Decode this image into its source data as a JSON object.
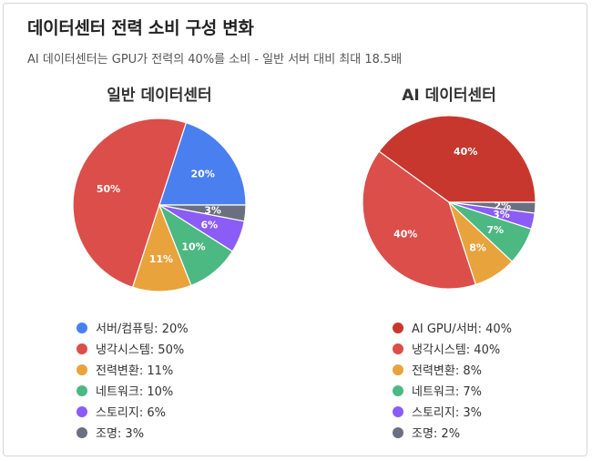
{
  "title": "데이터센터 전력 소비 구성 변화",
  "subtitle": "AI 데이터센터는 GPU가 전력의 40%를 소비 - 일반 서버 대비 최대 18.5배",
  "chart_data": [
    {
      "type": "pie",
      "title": "일반 데이터센터",
      "categories": [
        "서버/컴퓨팅",
        "냉각시스템",
        "전력변환",
        "네트워크",
        "스토리지",
        "조명"
      ],
      "values": [
        20,
        50,
        11,
        10,
        6,
        3
      ],
      "colors": [
        "#4a7ff0",
        "#dc4e4a",
        "#e8a33c",
        "#4cb882",
        "#8b5cf6",
        "#6b7080"
      ],
      "legend": [
        "서버/컴퓨팅: 20%",
        "냉각시스템: 50%",
        "전력변환: 11%",
        "네트워크: 10%",
        "스토리지: 6%",
        "조명: 3%"
      ]
    },
    {
      "type": "pie",
      "title": "AI 데이터센터",
      "categories": [
        "AI GPU/서버",
        "냉각시스템",
        "전력변환",
        "네트워크",
        "스토리지",
        "조명"
      ],
      "values": [
        40,
        40,
        8,
        7,
        3,
        2
      ],
      "colors": [
        "#c8372d",
        "#dc4e4a",
        "#e8a33c",
        "#4cb882",
        "#8b5cf6",
        "#6b7080"
      ],
      "legend": [
        "AI GPU/서버: 40%",
        "냉각시스템: 40%",
        "전력변환: 8%",
        "네트워크: 7%",
        "스토리지: 3%",
        "조명: 2%"
      ]
    }
  ]
}
